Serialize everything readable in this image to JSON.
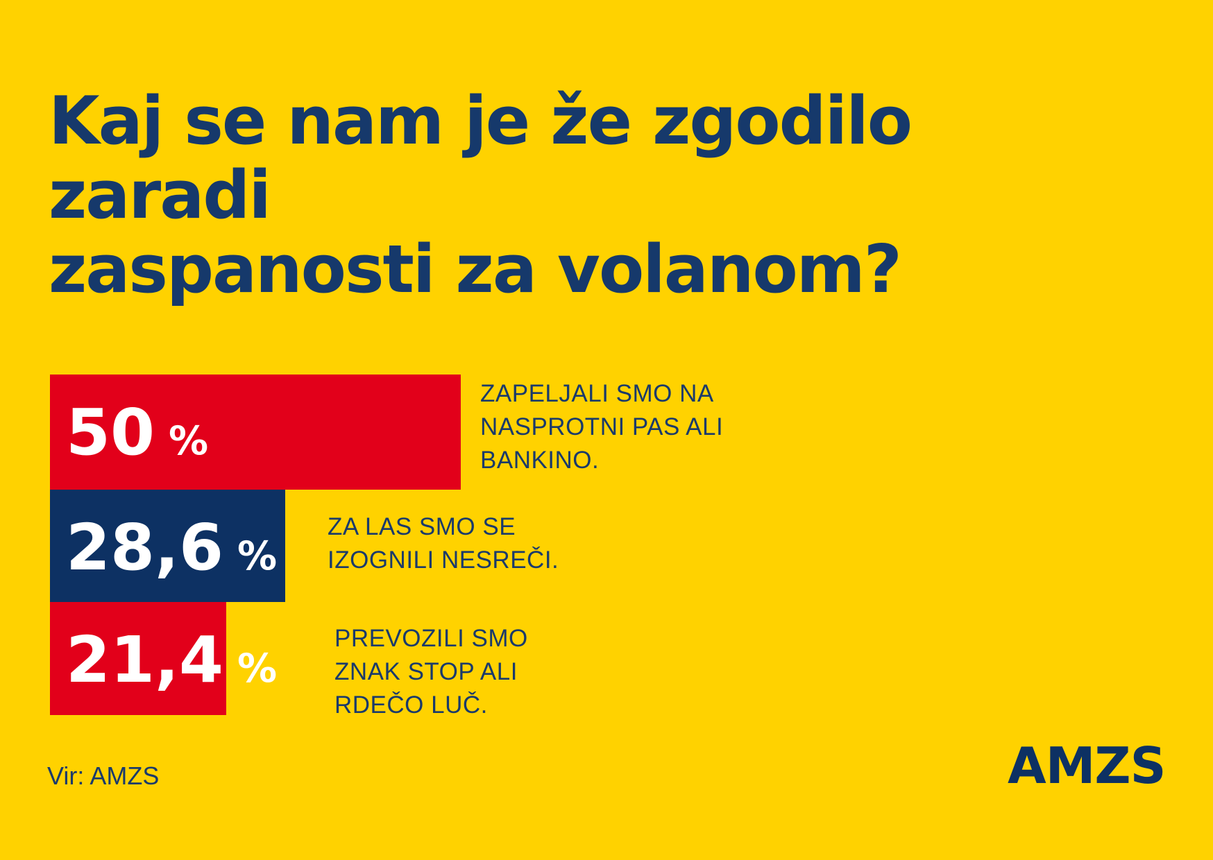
{
  "title": {
    "line1": "Kaj se nam je že zgodilo zaradi",
    "line2": "zaspanosti za volanom?"
  },
  "colors": {
    "background_yellow": "#FFD200",
    "bar_red": "#E2001A",
    "bar_navy": "#0D3163",
    "text_navy": "#16396B",
    "value_white": "#FFFFFF"
  },
  "chart_data": {
    "type": "bar",
    "orientation": "horizontal",
    "title": "Kaj se nam je že zgodilo zaradi zaspanosti za volanom?",
    "unit": "%",
    "categories": [
      "ZAPELJALI SMO NA NASPROTNI PAS ALI BANKINO.",
      "ZA LAS SMO SE IZOGNILI NESREČI.",
      "PREVOZILI SMO ZNAK STOP ALI RDEČO LUČ."
    ],
    "values": [
      50,
      28.6,
      21.4
    ],
    "value_labels": [
      "50 %",
      "28,6 %",
      "21,4 %"
    ],
    "bar_colors": [
      "#E2001A",
      "#0D3163",
      "#E2001A"
    ],
    "xlim": [
      0,
      50
    ],
    "grid": false,
    "legend": false,
    "source": "Vir: AMZS"
  },
  "bars": [
    {
      "num": "50",
      "pct": "%",
      "label_lines": [
        "ZAPELJALI SMO NA",
        "NASPROTNI PAS ALI",
        "BANKINO."
      ]
    },
    {
      "num": "28,6",
      "pct": "%",
      "label_lines": [
        "ZA LAS SMO SE",
        "IZOGNILI NESREČI."
      ]
    },
    {
      "num": "21,4",
      "pct": "%",
      "label_lines": [
        "PREVOZILI SMO",
        "ZNAK STOP ALI",
        "RDEČO LUČ."
      ]
    }
  ],
  "source_label": "Vir: AMZS",
  "logo_text": "AMZS"
}
